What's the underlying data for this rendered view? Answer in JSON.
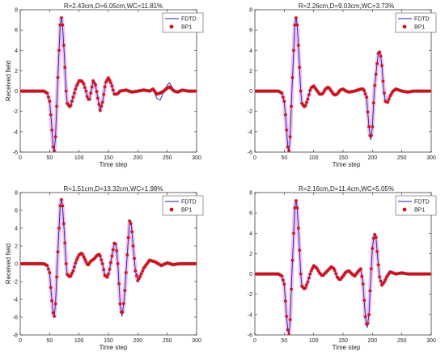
{
  "figure": {
    "background": "#ffffff",
    "axes_color": "#262626",
    "grid": false,
    "colors": {
      "fdtd": "#1f1fa8",
      "bp1_marker": "#e01010",
      "bp1_marker_edge": "#8b2020",
      "bp1_halo": "#f2c0f0"
    }
  },
  "chart_data": [
    {
      "type": "line",
      "title": "R=2.43cm,D=6.05cm,WC=11.81%",
      "xlabel": "Time step",
      "ylabel": "Received field",
      "xlim": [
        0,
        300
      ],
      "ylim": [
        -6,
        8
      ],
      "xticks": [
        0,
        50,
        100,
        150,
        200,
        250,
        300
      ],
      "yticks": [
        -6,
        -4,
        -2,
        0,
        2,
        4,
        6,
        8
      ],
      "legend": {
        "position": "top-right",
        "entries": [
          "FDTD",
          "BP1"
        ]
      },
      "series": [
        {
          "name": "FDTD",
          "style": "line",
          "x": [
            0,
            40,
            46,
            50,
            53,
            56,
            58,
            60,
            63,
            66,
            68,
            70,
            72,
            75,
            78,
            80,
            85,
            90,
            95,
            100,
            105,
            108,
            112,
            115,
            118,
            121,
            124,
            128,
            132,
            136,
            140,
            145,
            150,
            155,
            160,
            165,
            170,
            180,
            190,
            200,
            210,
            220,
            226,
            232,
            238,
            244,
            250,
            254,
            258,
            262,
            268,
            275,
            285,
            295,
            300
          ],
          "y": [
            0,
            0,
            -0.2,
            -1,
            -3,
            -5.5,
            -5.9,
            -4.5,
            0,
            4,
            6.5,
            7.2,
            6.5,
            3.5,
            0,
            -1.2,
            -1.6,
            -0.6,
            0.4,
            1,
            1,
            0.7,
            0,
            -0.8,
            -0.8,
            0.1,
            1,
            0.6,
            -0.7,
            -1.9,
            -1.1,
            0.8,
            1.3,
            0.7,
            -0.3,
            -0.3,
            0,
            0.1,
            -0.1,
            0,
            0.1,
            0,
            0.3,
            -0.7,
            -0.9,
            -0.1,
            0.6,
            0.8,
            0.4,
            0,
            -0.1,
            0.1,
            0,
            0,
            0
          ]
        },
        {
          "name": "BP1",
          "style": "markers",
          "x": [
            0,
            40,
            46,
            50,
            53,
            56,
            58,
            60,
            63,
            66,
            68,
            70,
            72,
            75,
            78,
            80,
            85,
            90,
            95,
            100,
            105,
            108,
            112,
            115,
            118,
            121,
            124,
            128,
            132,
            136,
            140,
            145,
            150,
            155,
            160,
            165,
            170,
            180,
            190,
            200,
            210,
            220,
            226,
            232,
            238,
            244,
            250,
            254,
            258,
            262,
            268,
            275,
            285,
            295,
            300
          ],
          "y": [
            0,
            0,
            -0.2,
            -1,
            -3,
            -5.5,
            -5.9,
            -4.5,
            0,
            4,
            6.5,
            7.2,
            6.5,
            3.5,
            0,
            -1.2,
            -1.6,
            -0.6,
            0.4,
            1,
            1,
            0.7,
            0,
            -0.8,
            -0.8,
            0.1,
            1,
            0.6,
            -0.7,
            -1.9,
            -1.1,
            0.8,
            1.3,
            0.7,
            -0.3,
            -0.3,
            0,
            0.1,
            -0.1,
            0,
            0.1,
            0,
            0.2,
            -0.3,
            -0.2,
            0,
            0.3,
            0.4,
            0.2,
            0,
            -0.1,
            0.1,
            0,
            0,
            0
          ]
        }
      ]
    },
    {
      "type": "line",
      "title": "R=2.26cm,D=9.03cm,WC=3.73%",
      "xlabel": "Time step",
      "ylabel": "",
      "xlim": [
        0,
        300
      ],
      "ylim": [
        -6,
        8
      ],
      "xticks": [
        0,
        50,
        100,
        150,
        200,
        250,
        300
      ],
      "yticks": [
        -6,
        -4,
        -2,
        0,
        2,
        4,
        6,
        8
      ],
      "legend": {
        "position": "top-right",
        "entries": [
          "FDTD",
          "BP1"
        ]
      },
      "series": [
        {
          "name": "FDTD",
          "style": "line",
          "x": [
            0,
            40,
            46,
            50,
            53,
            56,
            58,
            60,
            63,
            66,
            68,
            70,
            72,
            75,
            78,
            80,
            85,
            90,
            95,
            100,
            105,
            110,
            115,
            120,
            125,
            130,
            135,
            140,
            145,
            150,
            155,
            160,
            170,
            180,
            185,
            190,
            194,
            197,
            200,
            203,
            207,
            210,
            213,
            216,
            219,
            222,
            226,
            230,
            235,
            240,
            250,
            260,
            270,
            280,
            290,
            300
          ],
          "y": [
            0,
            0,
            -0.2,
            -1,
            -3,
            -5.5,
            -5.9,
            -4.5,
            0,
            4,
            6.5,
            7.2,
            6.5,
            3.5,
            0,
            -1.2,
            -1.6,
            -0.8,
            0.3,
            0.5,
            0.1,
            -0.3,
            -0.3,
            0.2,
            0.4,
            0,
            -0.4,
            -0.3,
            0.1,
            0.2,
            0,
            -0.1,
            0,
            0.2,
            0.2,
            -0.6,
            -3.5,
            -4.8,
            -3.5,
            0,
            2.2,
            3.7,
            3.9,
            2.5,
            0.2,
            -1,
            -1.1,
            -0.5,
            0,
            0.2,
            0,
            -0.1,
            0,
            0,
            0,
            0
          ]
        },
        {
          "name": "BP1",
          "style": "markers",
          "x": [
            0,
            40,
            46,
            50,
            53,
            56,
            58,
            60,
            63,
            66,
            68,
            70,
            72,
            75,
            78,
            80,
            85,
            90,
            95,
            100,
            105,
            110,
            115,
            120,
            125,
            130,
            135,
            140,
            145,
            150,
            155,
            160,
            170,
            180,
            185,
            190,
            194,
            197,
            200,
            203,
            207,
            210,
            213,
            216,
            219,
            222,
            226,
            230,
            235,
            240,
            250,
            260,
            270,
            280,
            290,
            300
          ],
          "y": [
            0,
            0,
            -0.2,
            -1,
            -3,
            -5.5,
            -5.9,
            -4.5,
            0,
            4,
            6.5,
            7.2,
            6.5,
            3.5,
            0,
            -1.2,
            -1.6,
            -0.8,
            0.3,
            0.5,
            0.1,
            -0.3,
            -0.3,
            0.2,
            0.4,
            0,
            -0.4,
            -0.3,
            0.1,
            0.2,
            0,
            -0.1,
            0,
            0.2,
            0.2,
            -0.6,
            -3.5,
            -4.8,
            -3.5,
            0,
            2.2,
            3.7,
            3.9,
            2.5,
            0.2,
            -1,
            -1.1,
            -0.5,
            0,
            0.2,
            0,
            -0.1,
            0,
            0,
            0,
            0
          ]
        }
      ]
    },
    {
      "type": "line",
      "title": "R=1.51cm,D=13.32cm,WC=1.98%",
      "xlabel": "Time step",
      "ylabel": "Received field",
      "xlim": [
        0,
        300
      ],
      "ylim": [
        -8,
        8
      ],
      "xticks": [
        0,
        50,
        100,
        150,
        200,
        250,
        300
      ],
      "yticks": [
        -8,
        -6,
        -4,
        -2,
        0,
        2,
        4,
        6,
        8
      ],
      "legend": {
        "position": "top-right",
        "entries": [
          "FDTD",
          "BP1"
        ]
      },
      "series": [
        {
          "name": "FDTD",
          "style": "line",
          "x": [
            0,
            40,
            46,
            50,
            53,
            56,
            58,
            60,
            63,
            66,
            68,
            70,
            72,
            75,
            78,
            80,
            85,
            90,
            95,
            100,
            105,
            110,
            115,
            120,
            125,
            130,
            135,
            140,
            144,
            148,
            151,
            155,
            160,
            163,
            166,
            170,
            173,
            177,
            180,
            183,
            186,
            189,
            192,
            196,
            200,
            205,
            210,
            220,
            230,
            240,
            250,
            260,
            270,
            280,
            290,
            300
          ],
          "y": [
            0,
            0,
            -0.2,
            -1,
            -3.5,
            -5.5,
            -5.9,
            -4.5,
            0,
            4,
            6.5,
            7.2,
            6.5,
            3.5,
            0,
            -1.2,
            -1.5,
            -0.8,
            0.3,
            1,
            1.2,
            0.5,
            -0.2,
            0.3,
            0.5,
            0.9,
            1.1,
            0,
            -1.3,
            -1.5,
            -1,
            0.5,
            2.3,
            2.2,
            0,
            -4.5,
            -5.9,
            -4,
            -1,
            2,
            4.8,
            4.4,
            2,
            -0.8,
            -1.9,
            -1.3,
            -0.5,
            0.4,
            0.2,
            -0.2,
            0.1,
            -0.1,
            0,
            0,
            0,
            0
          ]
        },
        {
          "name": "BP1",
          "style": "markers",
          "x": [
            0,
            40,
            46,
            50,
            53,
            56,
            58,
            60,
            63,
            66,
            68,
            70,
            72,
            75,
            78,
            80,
            85,
            90,
            95,
            100,
            105,
            110,
            115,
            120,
            125,
            130,
            135,
            140,
            144,
            148,
            151,
            155,
            160,
            163,
            166,
            170,
            173,
            177,
            180,
            183,
            186,
            189,
            192,
            196,
            200,
            205,
            210,
            220,
            230,
            240,
            250,
            260,
            270,
            280,
            290,
            300
          ],
          "y": [
            0,
            0,
            -0.2,
            -1,
            -3.5,
            -5.5,
            -5.9,
            -4.5,
            0,
            4,
            6.5,
            7.2,
            6.5,
            3.5,
            0,
            -1.2,
            -1.5,
            -0.8,
            0.3,
            1,
            1.2,
            0.5,
            -0.2,
            0.3,
            0.5,
            0.9,
            1.1,
            0,
            -1.3,
            -1.5,
            -1,
            0.5,
            2.3,
            2.2,
            0,
            -4.5,
            -5.9,
            -4,
            -1,
            2,
            4.8,
            4.4,
            2,
            -0.8,
            -1.9,
            -1.3,
            -0.5,
            0.4,
            0.2,
            -0.2,
            0.1,
            -0.1,
            0,
            0,
            0,
            0
          ]
        }
      ]
    },
    {
      "type": "line",
      "title": "R=2.16cm,D=11.4cm,WC=5.05%",
      "xlabel": "Time step",
      "ylabel": "",
      "xlim": [
        0,
        300
      ],
      "ylim": [
        -6,
        8
      ],
      "xticks": [
        0,
        50,
        100,
        150,
        200,
        250,
        300
      ],
      "yticks": [
        -6,
        -4,
        -2,
        0,
        2,
        4,
        6,
        8
      ],
      "legend": {
        "position": "top-right",
        "entries": [
          "FDTD",
          "BP1"
        ]
      },
      "series": [
        {
          "name": "FDTD",
          "style": "line",
          "x": [
            0,
            40,
            46,
            50,
            53,
            56,
            58,
            60,
            63,
            66,
            68,
            70,
            72,
            75,
            78,
            80,
            85,
            90,
            95,
            100,
            105,
            110,
            115,
            120,
            125,
            130,
            135,
            140,
            145,
            150,
            155,
            160,
            165,
            170,
            175,
            180,
            184,
            188,
            191,
            194,
            197,
            200,
            203,
            206,
            209,
            212,
            216,
            220,
            225,
            230,
            240,
            250,
            260,
            270,
            280,
            290,
            300
          ],
          "y": [
            0,
            0,
            -0.2,
            -1,
            -3.5,
            -5.5,
            -6,
            -4.5,
            0,
            4,
            6.5,
            7.2,
            6.5,
            3.5,
            0,
            -1.2,
            -1.5,
            -0.8,
            0.2,
            0.8,
            0.6,
            0.1,
            -0.2,
            0.1,
            0.4,
            0.7,
            0.5,
            -0.3,
            -0.6,
            -0.2,
            0.2,
            0.3,
            0,
            -0.2,
            0.2,
            0.5,
            -1,
            -4.2,
            -5.3,
            -4,
            -0.5,
            2.5,
            4,
            3.6,
            1.5,
            -0.3,
            -1.1,
            -0.8,
            -0.2,
            0.2,
            0,
            0.1,
            0,
            0,
            0,
            0,
            0
          ]
        },
        {
          "name": "BP1",
          "style": "markers",
          "x": [
            0,
            40,
            46,
            50,
            53,
            56,
            58,
            60,
            63,
            66,
            68,
            70,
            72,
            75,
            78,
            80,
            85,
            90,
            95,
            100,
            105,
            110,
            115,
            120,
            125,
            130,
            135,
            140,
            145,
            150,
            155,
            160,
            165,
            170,
            175,
            180,
            184,
            188,
            191,
            194,
            197,
            200,
            203,
            206,
            209,
            212,
            216,
            220,
            225,
            230,
            240,
            250,
            260,
            270,
            280,
            290,
            300
          ],
          "y": [
            0,
            0,
            -0.2,
            -1,
            -3.5,
            -5.5,
            -6,
            -4.5,
            0,
            4,
            6.5,
            7.2,
            6.5,
            3.5,
            0,
            -1.2,
            -1.5,
            -0.8,
            0.2,
            0.8,
            0.6,
            0.1,
            -0.2,
            0.1,
            0.4,
            0.7,
            0.5,
            -0.3,
            -0.6,
            -0.2,
            0.2,
            0.3,
            0,
            -0.2,
            0.2,
            0.5,
            -1,
            -4.2,
            -5.3,
            -4,
            -0.5,
            2.5,
            4,
            3.6,
            1.5,
            -0.3,
            -1.1,
            -0.8,
            -0.2,
            0.2,
            0,
            0.1,
            0,
            0,
            0,
            0,
            0
          ]
        }
      ]
    }
  ]
}
